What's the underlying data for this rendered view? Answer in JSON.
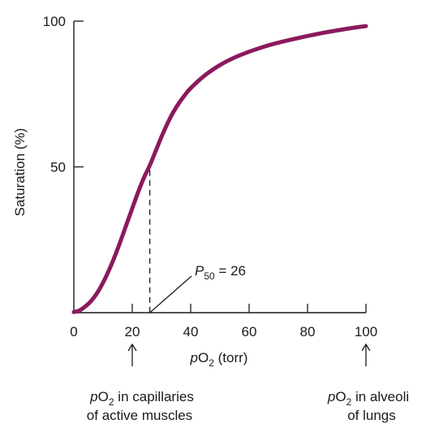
{
  "chart_data": {
    "type": "line",
    "title": "",
    "xlabel_italic": "p",
    "xlabel_main": "O",
    "xlabel_sub": "2",
    "xlabel_rest": " (torr)",
    "ylabel": "Saturation (%)",
    "xlim": [
      0,
      100
    ],
    "ylim": [
      0,
      100
    ],
    "xticks": [
      0,
      20,
      40,
      60,
      80,
      100
    ],
    "xtick_labels": [
      "0",
      "20",
      "40",
      "60",
      "80",
      "100"
    ],
    "yticks": [
      50,
      100
    ],
    "ytick_labels": [
      "50",
      "100"
    ],
    "grid": false,
    "line_color": "#8b1a5c",
    "series": [
      {
        "x": [
          0,
          2,
          4,
          6,
          8,
          10,
          12,
          14,
          16,
          18,
          20,
          22,
          24,
          26,
          28,
          30,
          32,
          34,
          36,
          38,
          40,
          45,
          50,
          55,
          60,
          65,
          70,
          75,
          80,
          85,
          90,
          95,
          100
        ],
        "y": [
          0.2,
          0.8,
          2.2,
          4.1,
          6.8,
          10.3,
          14.5,
          19.3,
          24.6,
          30.2,
          35.8,
          41.3,
          46.3,
          50.5,
          55.4,
          60.3,
          64.8,
          68.7,
          71.9,
          74.6,
          77.0,
          81.5,
          84.9,
          87.5,
          89.5,
          91.2,
          92.6,
          93.8,
          94.9,
          95.9,
          96.8,
          97.6,
          98.3
        ]
      }
    ],
    "annotation": {
      "x": 26,
      "y": 50.5,
      "label_italic": "P",
      "label_sub": "50",
      "label_rest": " = 26"
    },
    "arrows": [
      {
        "x": 20,
        "line1_italic": "p",
        "line1_main": "O",
        "line1_sub": "2",
        "line1_rest": " in capillaries",
        "line2": "of active muscles"
      },
      {
        "x": 100,
        "line1_italic": "p",
        "line1_main": "O",
        "line1_sub": "2",
        "line1_rest": " in alveoli",
        "line2": "of lungs"
      }
    ]
  }
}
